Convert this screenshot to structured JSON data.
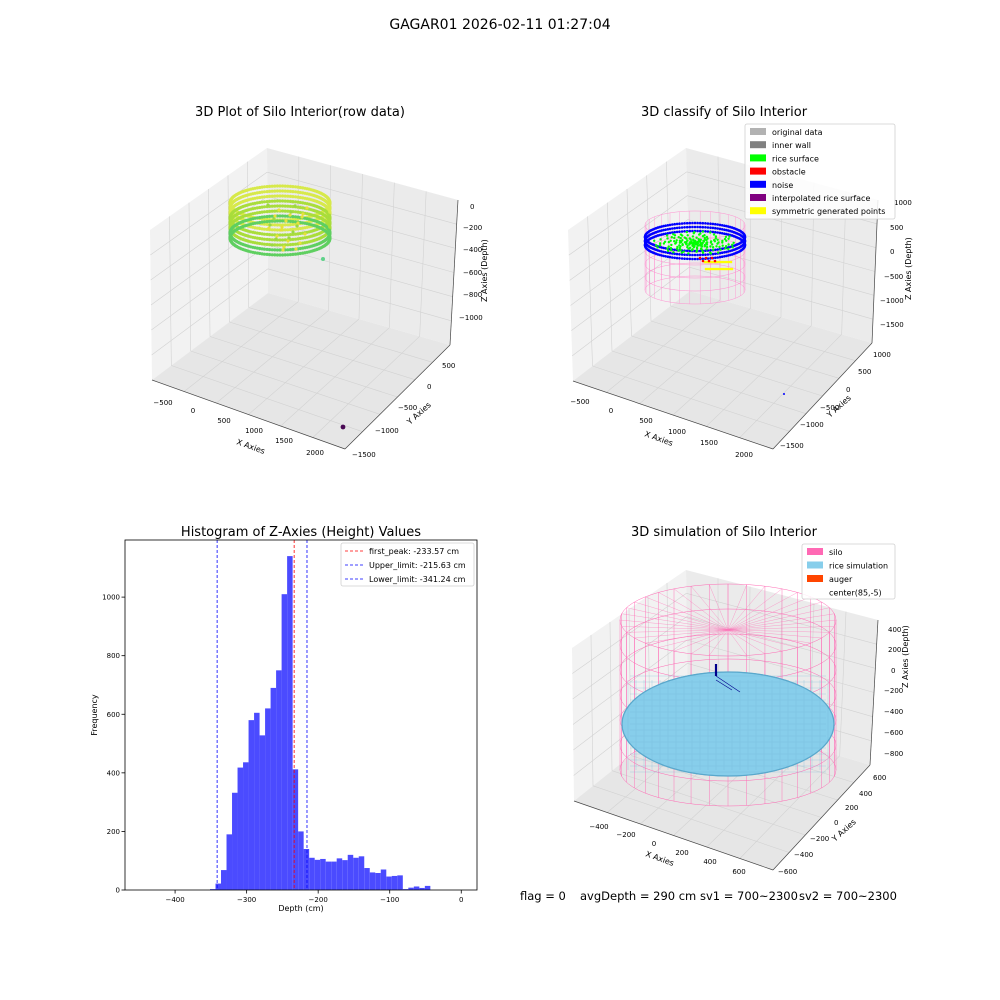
{
  "figure": {
    "suptitle": "GAGAR01 2026-02-11 01:27:04",
    "footer": {
      "flag": "flag = 0",
      "avgDepth": "avgDepth = 290 cm",
      "sv1": "sv1 = 700~2300",
      "sv2": "sv2 = 700~2300"
    }
  },
  "panels": {
    "raw3d": {
      "title": "3D Plot of Silo Interior(row data)",
      "xlabel": "X Axies",
      "ylabel": "Y Axies",
      "zlabel": "Z Axies (Depth)",
      "xticks": [
        "−500",
        "0",
        "500",
        "1000",
        "1500",
        "2000"
      ],
      "yticks": [
        "500",
        "0",
        "−500",
        "−1000",
        "−1500"
      ],
      "zticks": [
        "0",
        "−200",
        "−400",
        "−600",
        "−800",
        "−1000"
      ]
    },
    "classify3d": {
      "title": "3D classify of Silo Interior",
      "xlabel": "X Axies",
      "ylabel": "Y Axies",
      "zlabel": "Z Axies (Depth)",
      "xticks": [
        "−500",
        "0",
        "500",
        "1000",
        "1500",
        "2000"
      ],
      "yticks": [
        "1000",
        "500",
        "0",
        "−500",
        "−1000",
        "−1500"
      ],
      "zticks": [
        "1000",
        "500",
        "0",
        "−500",
        "−1000",
        "−1500"
      ],
      "legend": [
        {
          "label": "original data",
          "color": "#b2b2b2"
        },
        {
          "label": "inner wall",
          "color": "#808080"
        },
        {
          "label": "rice surface",
          "color": "#00ff00"
        },
        {
          "label": "obstacle",
          "color": "#ff0000"
        },
        {
          "label": "noise",
          "color": "#0000ff"
        },
        {
          "label": "interpolated rice surface",
          "color": "#800080"
        },
        {
          "label": "symmetric generated points",
          "color": "#ffff00"
        }
      ]
    },
    "simulation3d": {
      "title": "3D simulation of Silo Interior",
      "xlabel": "X Axies",
      "ylabel": "Y Axies",
      "zlabel": "Z Axies (Depth)",
      "xticks": [
        "−400",
        "−200",
        "0",
        "200",
        "400",
        "600"
      ],
      "yticks": [
        "600",
        "400",
        "200",
        "0",
        "−200",
        "−400",
        "−600"
      ],
      "zticks": [
        "400",
        "200",
        "0",
        "−200",
        "−400",
        "−600",
        "−800"
      ],
      "legend": [
        {
          "label": "silo",
          "color": "#ff69b4"
        },
        {
          "label": "rice simulation",
          "color": "#87ceeb"
        },
        {
          "label": "auger",
          "color": "#ff4500"
        },
        {
          "label": "center(85,-5)",
          "color": null
        }
      ]
    }
  },
  "chart_data": [
    {
      "type": "histogram",
      "title": "Histogram of Z-Axies (Height) Values",
      "xlabel": "Depth (cm)",
      "ylabel": "Frequency",
      "xlim": [
        -470,
        22
      ],
      "ylim": [
        0,
        1195
      ],
      "xticks": [
        -400,
        -300,
        -200,
        -100,
        0
      ],
      "yticks": [
        0,
        200,
        400,
        600,
        800,
        1000
      ],
      "bar_color": "#4b4bff",
      "bin_width": 7.7,
      "bin_start": -351.2,
      "counts": [
        3,
        22,
        68,
        190,
        332,
        418,
        436,
        580,
        605,
        528,
        620,
        690,
        750,
        1010,
        1140,
        412,
        200,
        140,
        110,
        103,
        106,
        97,
        97,
        108,
        102,
        120,
        110,
        115,
        75,
        60,
        58,
        70,
        46,
        48,
        50,
        3,
        8,
        12,
        7,
        14
      ],
      "reference_lines": [
        {
          "label": "first_peak: -233.57 cm",
          "value": -233.57,
          "color": "#ff0000"
        },
        {
          "label": "Upper_limit: -215.63 cm",
          "value": -215.63,
          "color": "#0000ff"
        },
        {
          "label": "Lower_limit: -341.24 cm",
          "value": -341.24,
          "color": "#0000ff"
        }
      ],
      "legend_position": "top-right"
    }
  ]
}
